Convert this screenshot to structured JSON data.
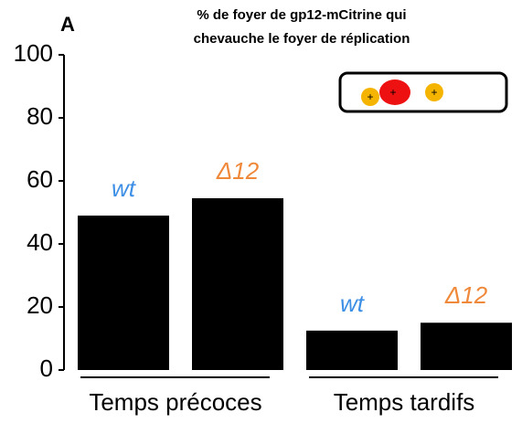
{
  "chart_data": {
    "type": "grouped-bar",
    "panel_label": "A",
    "title": [
      "% de foyer de gp12-mCitrine qui",
      "chevauche le foyer de réplication"
    ],
    "categories": [
      "Temps précoces",
      "Temps tardifs"
    ],
    "series": [
      {
        "name": "wt",
        "color": "#000000",
        "label_color": "#3d8fe6",
        "values": [
          49,
          12.5
        ]
      },
      {
        "name": "Δ12",
        "color": "#000000",
        "label_color": "#f0883a",
        "values": [
          54.5,
          15
        ]
      }
    ],
    "ylim": [
      0,
      100
    ],
    "yticks": [
      0,
      20,
      40,
      60,
      80,
      100
    ],
    "inset": {
      "symbols": [
        "+",
        "+",
        "+"
      ]
    }
  }
}
